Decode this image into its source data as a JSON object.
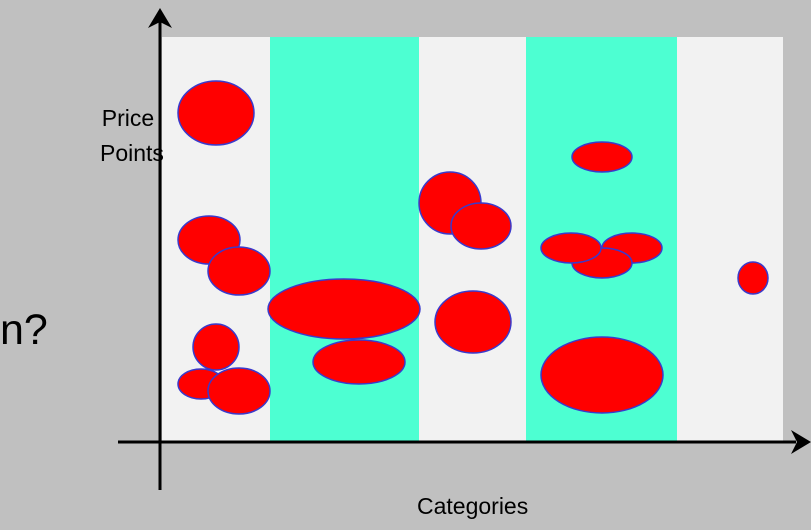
{
  "labels": {
    "y_axis_line1": "Price",
    "y_axis_line2": "Points",
    "x_axis": "Categories",
    "cut_off_text": "n?"
  },
  "colors": {
    "background": "#c0c0c0",
    "band_light": "#f2f2f2",
    "band_teal": "#4dffd2",
    "bubble_fill": "#ff0000",
    "bubble_stroke": "#3a3acc",
    "axis": "#000000"
  },
  "bands": [
    {
      "style": "light"
    },
    {
      "style": "teal"
    },
    {
      "style": "light"
    },
    {
      "style": "teal"
    },
    {
      "style": "light"
    }
  ]
}
